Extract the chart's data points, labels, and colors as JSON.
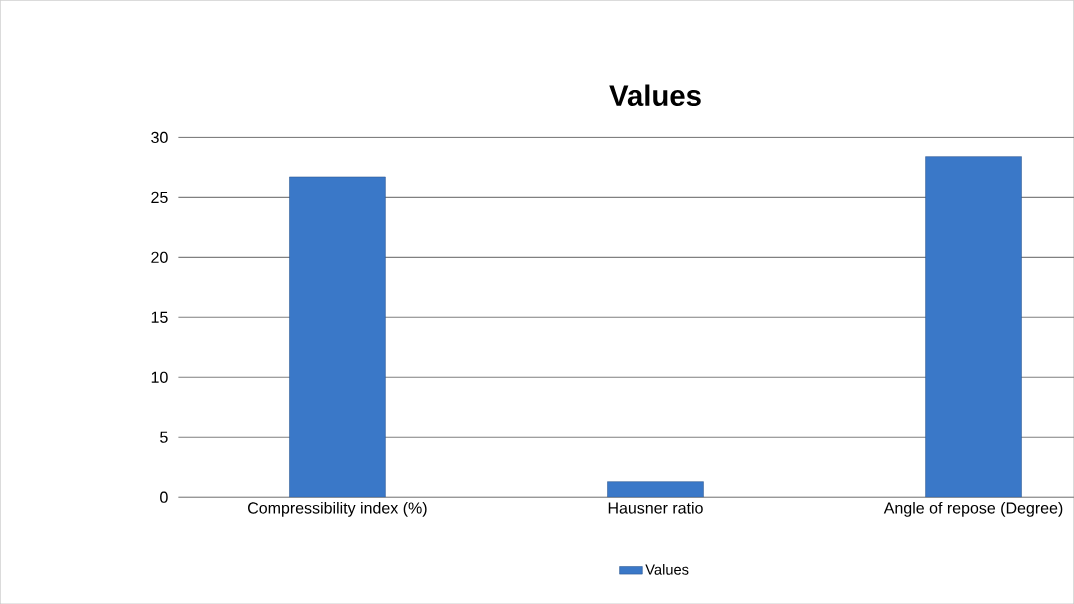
{
  "chart_data": {
    "type": "bar",
    "title": "Values",
    "categories": [
      "Compressibility index (%)",
      "Hausner ratio",
      "Angle of repose (Degree)"
    ],
    "series": [
      {
        "name": "Values",
        "color": "#3a78c8",
        "values": [
          26.7,
          1.3,
          28.4
        ]
      }
    ],
    "ylim": [
      0,
      30
    ],
    "yticks": [
      0,
      5,
      10,
      15,
      20,
      25,
      30
    ],
    "grid": "y",
    "legend": "bottom"
  }
}
